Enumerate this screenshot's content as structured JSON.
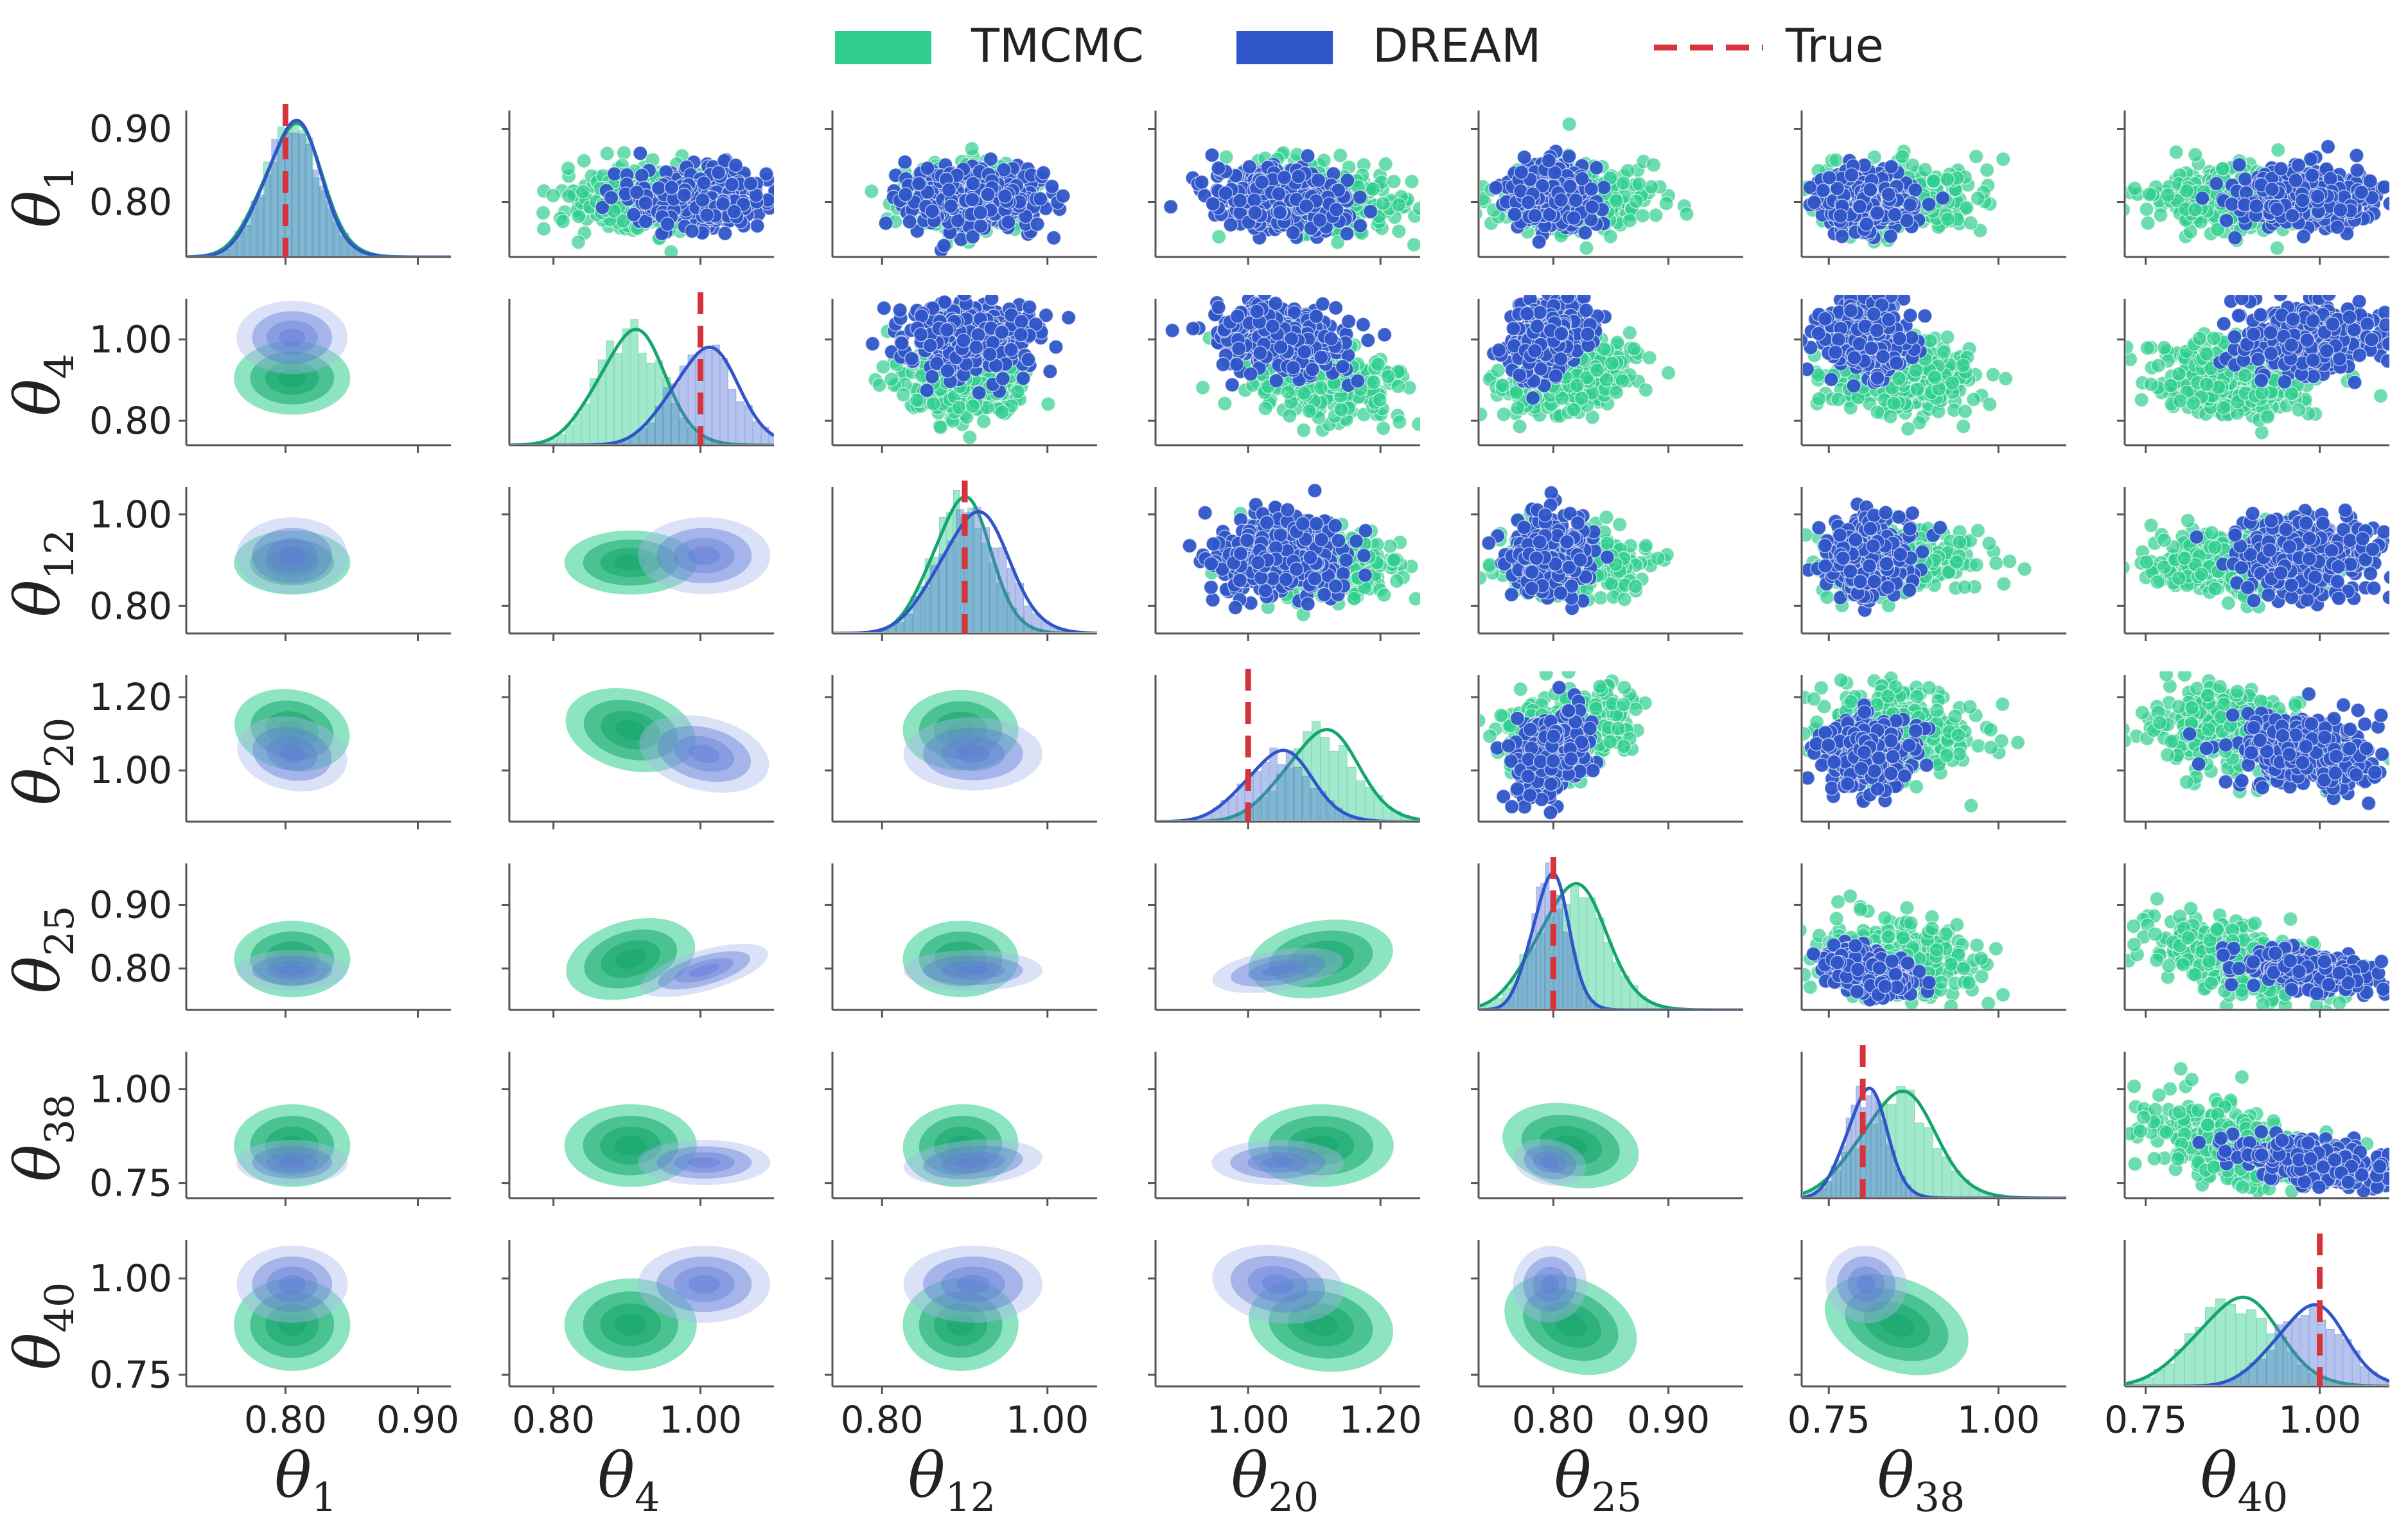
{
  "chart_data": {
    "type": "pairplot",
    "title": "",
    "legend": {
      "placement": "top-center",
      "entries": [
        {
          "label": "TMCMC",
          "color": "#2fce8e",
          "kind": "patch"
        },
        {
          "label": "DREAM",
          "color": "#2f55c8",
          "kind": "patch"
        },
        {
          "label": "True",
          "color": "#d6333b",
          "kind": "dashed-line"
        }
      ]
    },
    "colors": {
      "tmcmc": "#2fce8e",
      "tmcmc_dark": "#16a56c",
      "dream": "#2f55c8",
      "dream_kde": "#5c79d6",
      "true_line": "#d6333b",
      "axis": "#555555"
    },
    "variables": [
      {
        "name": "θ",
        "sub": "1",
        "range": [
          0.725,
          0.925
        ],
        "ticks": [
          0.8,
          0.9
        ],
        "tick_labels": [
          "0.80",
          "0.90"
        ],
        "true": 0.8,
        "tmcmc": {
          "mean": 0.805,
          "sd": 0.022
        },
        "dream": {
          "mean": 0.805,
          "sd": 0.021
        }
      },
      {
        "name": "θ",
        "sub": "4",
        "range": [
          0.74,
          1.1
        ],
        "ticks": [
          0.8,
          1.0
        ],
        "tick_labels": [
          "0.80",
          "1.00"
        ],
        "true": 1.0,
        "tmcmc": {
          "mean": 0.905,
          "sd": 0.045
        },
        "dream": {
          "mean": 1.005,
          "sd": 0.045
        }
      },
      {
        "name": "θ",
        "sub": "12",
        "range": [
          0.74,
          1.06
        ],
        "ticks": [
          0.8,
          1.0
        ],
        "tick_labels": [
          "0.80",
          "1.00"
        ],
        "true": 0.9,
        "tmcmc": {
          "mean": 0.895,
          "sd": 0.035
        },
        "dream": {
          "mean": 0.91,
          "sd": 0.042
        }
      },
      {
        "name": "θ",
        "sub": "20",
        "range": [
          0.86,
          1.26
        ],
        "ticks": [
          1.0,
          1.2
        ],
        "tick_labels": [
          "1.00",
          "1.20"
        ],
        "true": 1.0,
        "tmcmc": {
          "mean": 1.11,
          "sd": 0.055
        },
        "dream": {
          "mean": 1.045,
          "sd": 0.05
        }
      },
      {
        "name": "θ",
        "sub": "25",
        "range": [
          0.735,
          0.965
        ],
        "ticks": [
          0.8,
          0.9
        ],
        "tick_labels": [
          "0.80",
          "0.90"
        ],
        "true": 0.8,
        "tmcmc": {
          "mean": 0.815,
          "sd": 0.03
        },
        "dream": {
          "mean": 0.797,
          "sd": 0.016
        }
      },
      {
        "name": "θ",
        "sub": "38",
        "range": [
          0.71,
          1.1
        ],
        "ticks": [
          0.75,
          1.0
        ],
        "tick_labels": [
          "0.75",
          "1.00"
        ],
        "true": 0.8,
        "tmcmc": {
          "mean": 0.85,
          "sd": 0.055
        },
        "dream": {
          "mean": 0.805,
          "sd": 0.03
        }
      },
      {
        "name": "θ",
        "sub": "40",
        "range": [
          0.72,
          1.1
        ],
        "ticks": [
          0.75,
          1.0
        ],
        "tick_labels": [
          "0.75",
          "1.00"
        ],
        "true": 1.0,
        "tmcmc": {
          "mean": 0.88,
          "sd": 0.06
        },
        "dream": {
          "mean": 0.985,
          "sd": 0.05
        }
      }
    ],
    "diag_peaks": {
      "tmcmc": [
        0.9,
        0.78,
        0.92,
        0.62,
        0.85,
        0.72,
        0.6
      ],
      "dream": [
        0.92,
        0.66,
        0.82,
        0.48,
        0.92,
        0.74,
        0.55
      ]
    },
    "upper": "scatter",
    "lower": "kde",
    "diagonal": "histogram+kde"
  }
}
